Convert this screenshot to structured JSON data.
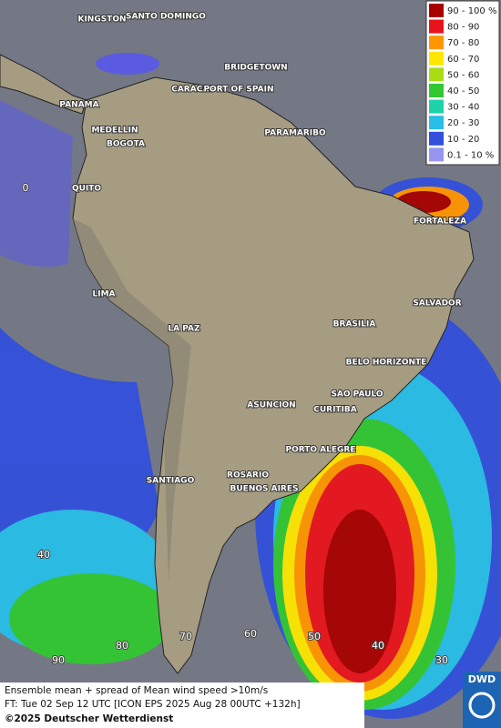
{
  "legend": {
    "items": [
      {
        "label": "90 - 100 %",
        "color": "#a80000"
      },
      {
        "label": "80 - 90",
        "color": "#e8141c"
      },
      {
        "label": "70 - 80",
        "color": "#ff9600"
      },
      {
        "label": "60 - 70",
        "color": "#ffe600"
      },
      {
        "label": "50 - 60",
        "color": "#aadc14"
      },
      {
        "label": "40 - 50",
        "color": "#32c832"
      },
      {
        "label": "30 - 40",
        "color": "#1ed2aa"
      },
      {
        "label": "20 - 30",
        "color": "#28bee6"
      },
      {
        "label": "10 - 20",
        "color": "#3250dc"
      },
      {
        "label": "0.1 - 10 %",
        "color": "#9696f0"
      }
    ]
  },
  "cities": [
    "KINGSTON",
    "SANTO DOMINGO",
    "BRIDGETOWN",
    "CARACAS",
    "PORT OF SPAIN",
    "PANAMA",
    "MEDELLIN",
    "PARAMARIBO",
    "BOGOTA",
    "QUITO",
    "FORTALEZA",
    "LIMA",
    "SALVADOR",
    "BRASILIA",
    "LA PAZ",
    "BELO HORIZONTE",
    "SAO PAULO",
    "ASUNCION",
    "CURITIBA",
    "PORTO ALEGRE",
    "SANTIAGO",
    "ROSARIO",
    "BUENOS AIRES"
  ],
  "graticule": [
    "0",
    "40",
    "90",
    "80",
    "70",
    "60",
    "50",
    "40",
    "30"
  ],
  "footer": {
    "line1": "Ensemble mean + spread of Mean wind speed >10m/s",
    "line2": "FT: Tue 02 Sep 12 UTC [ICON EPS 2025 Aug 28 00UTC +132h]",
    "line3": "©2025 Deutscher Wetterdienst"
  },
  "logo": "DWD"
}
